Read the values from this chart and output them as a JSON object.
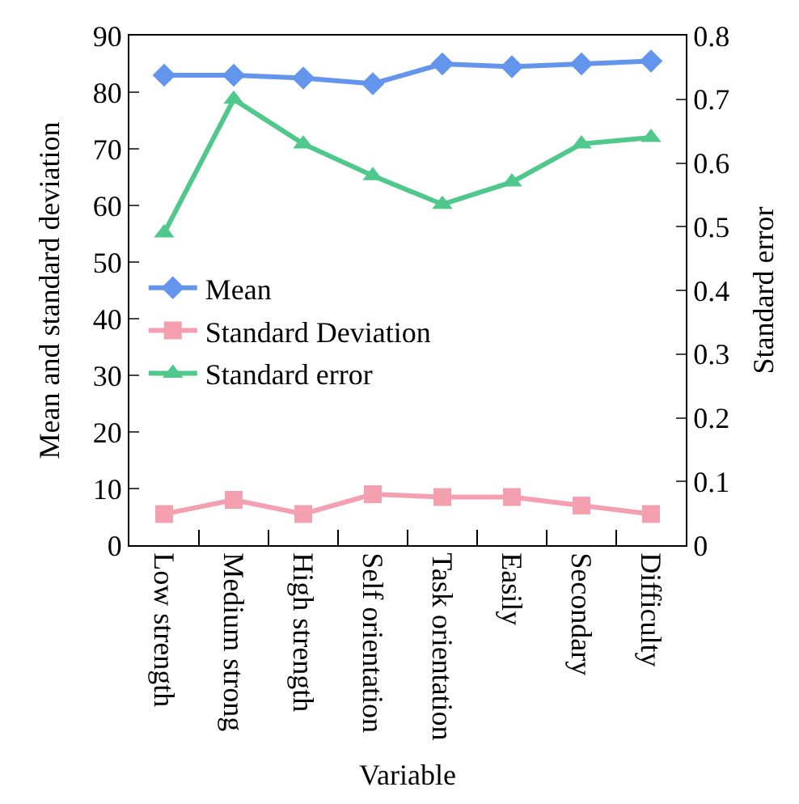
{
  "chart_data": {
    "type": "line",
    "xlabel": "Variable",
    "ylabel": "Mean and standard deviation",
    "y2label": "Standard error",
    "categories": [
      "Low strength",
      "Medium strong",
      "High strength",
      "Self orientation",
      "Task orientation",
      "Easily",
      "Secondary",
      "Difficulty"
    ],
    "series": [
      {
        "name": "Mean",
        "color": "#6495ed",
        "marker": "diamond",
        "values": [
          83,
          83,
          82.5,
          81.5,
          85,
          84.5,
          85,
          85.5
        ]
      },
      {
        "name": "Standard Deviation",
        "color": "#f4a0b0",
        "marker": "square",
        "values": [
          5.5,
          8,
          5.5,
          9,
          8.5,
          8.5,
          7,
          5.5
        ]
      },
      {
        "name": "Standard error",
        "color": "#50c88c",
        "marker": "triangle",
        "axis": "y2",
        "values": [
          0.49,
          0.7,
          0.63,
          0.58,
          0.535,
          0.57,
          0.63,
          0.64
        ]
      }
    ],
    "ylim": [
      0,
      90
    ],
    "yticks": [
      0,
      10,
      20,
      30,
      40,
      50,
      60,
      70,
      80,
      90
    ],
    "y2lim": [
      0,
      0.8
    ],
    "y2ticks": [
      0,
      0.1,
      0.2,
      0.3,
      0.4,
      0.5,
      0.6,
      0.7,
      0.8
    ],
    "legend": "left"
  }
}
